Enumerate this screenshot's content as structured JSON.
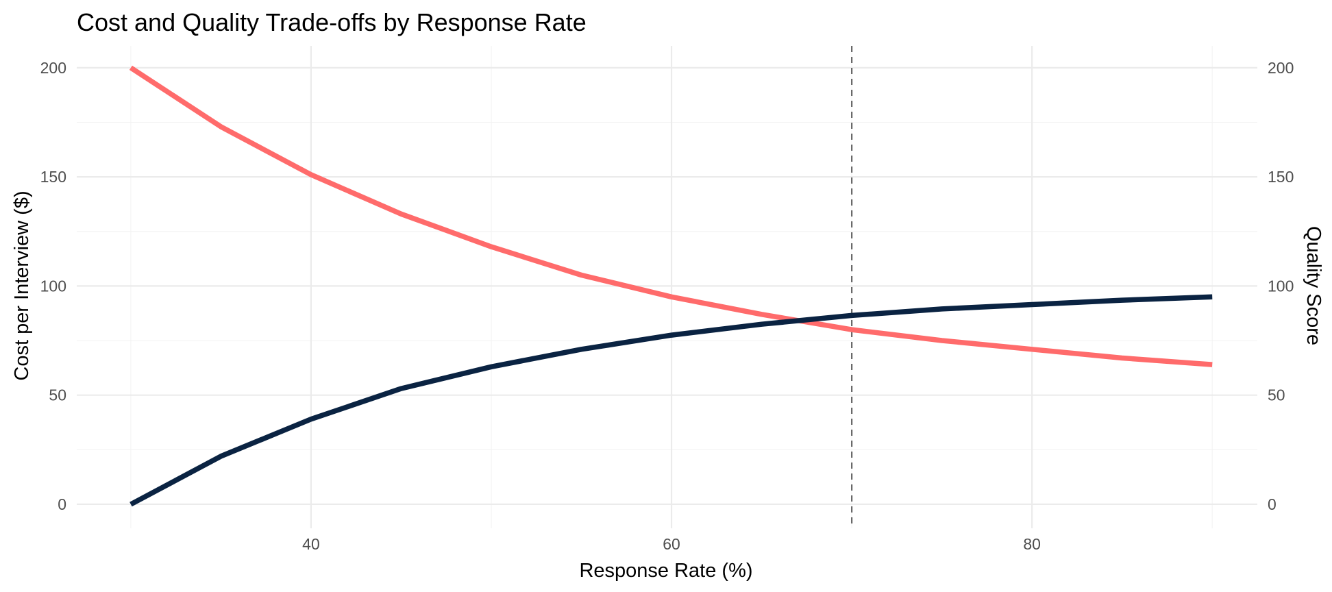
{
  "chart_data": {
    "type": "line",
    "title": "Cost and Quality Trade-offs by Response Rate",
    "xlabel": "Response Rate (%)",
    "ylabel": "Cost per Interview ($)",
    "y2label": "Quality Score",
    "xlim": [
      27,
      92.5
    ],
    "ylim": [
      -11,
      210
    ],
    "xticks": [
      40,
      60,
      80
    ],
    "yticks": [
      0,
      50,
      100,
      150,
      200
    ],
    "y2ticks": [
      0,
      50,
      100,
      150,
      200
    ],
    "grid": true,
    "legend": "none",
    "x": [
      30,
      35,
      40,
      45,
      50,
      55,
      60,
      65,
      70,
      75,
      80,
      85,
      90
    ],
    "series": [
      {
        "color": "#FF6B6B",
        "axis": "left",
        "values": [
          200,
          173,
          151,
          133,
          118,
          105,
          95,
          87,
          80,
          75,
          71,
          67,
          64
        ]
      },
      {
        "color": "#0A2342",
        "axis": "right",
        "values": [
          0,
          22,
          39,
          53,
          63,
          71,
          77.5,
          82.5,
          86.5,
          89.5,
          91.5,
          93.5,
          95
        ]
      }
    ],
    "reference_line": {
      "x": 70,
      "style": "dashed",
      "color": "#666666"
    }
  }
}
